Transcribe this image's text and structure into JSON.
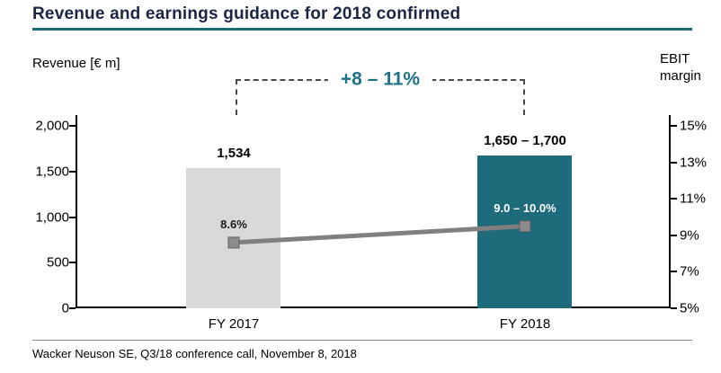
{
  "title": "Revenue and earnings guidance for 2018 confirmed",
  "footer": "Wacker Neuson SE, Q3/18 conference call, November 8, 2018",
  "annotation": "+8 – 11%",
  "left_axis": {
    "label": "Revenue [€ m]",
    "ticks": [
      "2,000",
      "1,500",
      "1,000",
      "500",
      "0"
    ]
  },
  "right_axis": {
    "label_line1": "EBIT",
    "label_line2": "margin",
    "ticks": [
      "15%",
      "13%",
      "11%",
      "9%",
      "7%",
      "5%"
    ]
  },
  "chart_data": {
    "type": "bar",
    "title": "Revenue and earnings guidance for 2018 confirmed",
    "categories": [
      "FY 2017",
      "FY 2018"
    ],
    "left_ylim": [
      0,
      2000
    ],
    "right_ylim": [
      5,
      15
    ],
    "series": [
      {
        "name": "Revenue [€ m]",
        "type": "bar",
        "axis": "left",
        "values": [
          1534,
          1675
        ],
        "ranges": [
          null,
          [
            1650,
            1700
          ]
        ],
        "labels": [
          "1,534",
          "1,650 – 1,700"
        ]
      },
      {
        "name": "EBIT margin",
        "type": "line",
        "axis": "right",
        "values": [
          8.6,
          9.5
        ],
        "ranges": [
          null,
          [
            9.0,
            10.0
          ]
        ],
        "labels": [
          "8.6%",
          "9.0 – 10.0%"
        ]
      }
    ],
    "annotation": "+8 – 11%",
    "legend": "none",
    "grid": false,
    "colors": {
      "bar_2017": "#d9d9d9",
      "bar_2018": "#1e6b7b",
      "line": "#808080",
      "marker": "#8c8c8c",
      "accent_teal": "#1e6b7b",
      "title_navy": "#1b2545"
    }
  }
}
